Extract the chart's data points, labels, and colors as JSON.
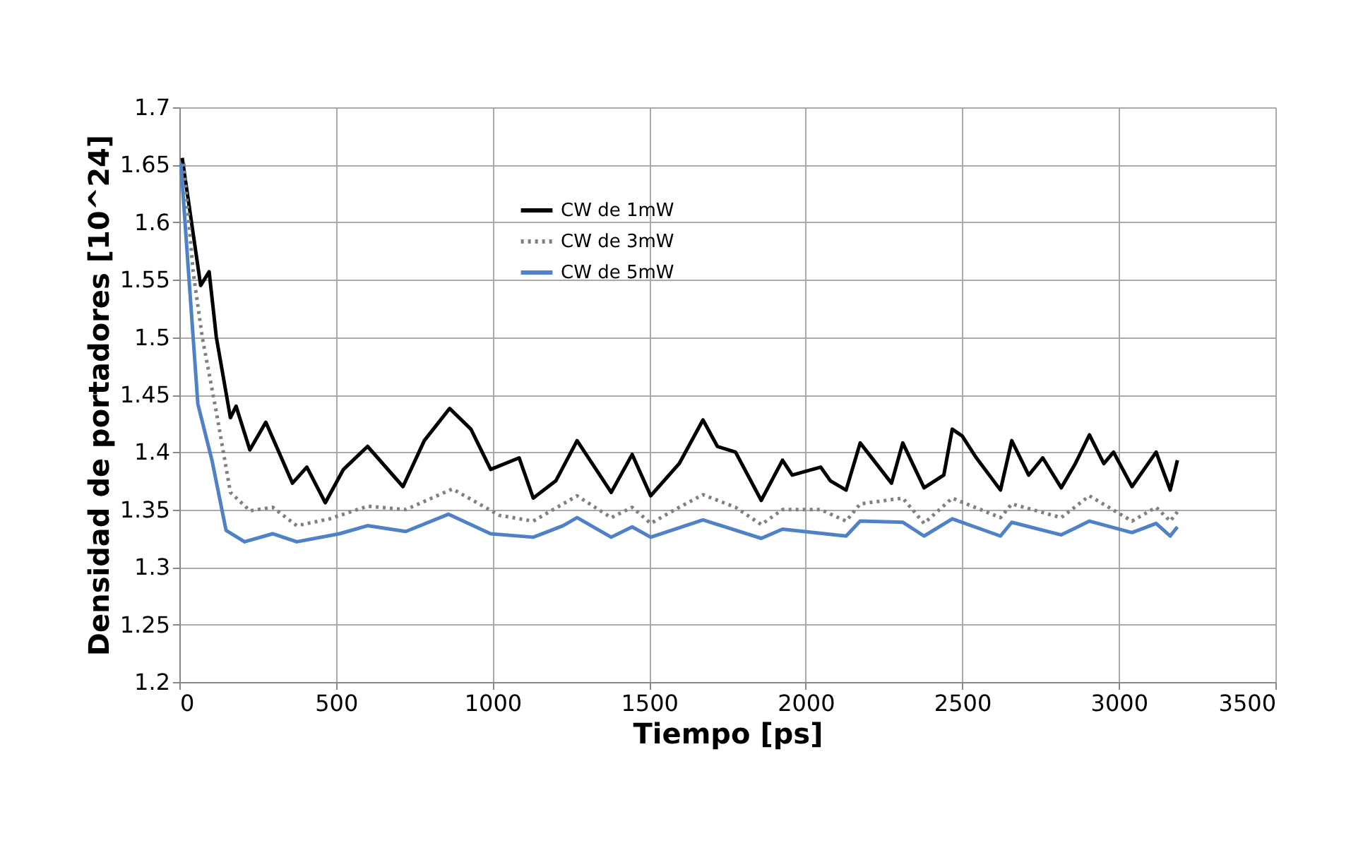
{
  "chart_data": {
    "type": "line",
    "xlabel": "Tiempo [ps]",
    "ylabel": "Densidad de portadores [10^24]",
    "xlim": [
      0,
      3500
    ],
    "xticks": [
      0,
      500,
      1000,
      1500,
      2000,
      2500,
      3000,
      3500
    ],
    "ylim": [
      1.2,
      1.7
    ],
    "yticks": [
      1.2,
      1.25,
      1.3,
      1.35,
      1.4,
      1.45,
      1.5,
      1.55,
      1.6,
      1.65,
      1.7
    ],
    "grid": true,
    "legend": "top left",
    "series": [
      {
        "name": "CW de 1mW",
        "color": "#000000",
        "line_style": "solid",
        "x": [
          9,
          68,
          95,
          118,
          163,
          181,
          225,
          276,
          361,
          407,
          466,
          524,
          601,
          714,
          782,
          863,
          931,
          994,
          1085,
          1130,
          1202,
          1270,
          1379,
          1446,
          1505,
          1596,
          1672,
          1718,
          1776,
          1858,
          1926,
          1957,
          2048,
          2079,
          2129,
          2174,
          2274,
          2310,
          2378,
          2441,
          2468,
          2500,
          2545,
          2622,
          2658,
          2712,
          2757,
          2816,
          2861,
          2906,
          2952,
          2983,
          3042,
          3119,
          3164,
          3187
        ],
        "values": [
          1.656,
          1.545,
          1.557,
          1.5,
          1.43,
          1.44,
          1.402,
          1.426,
          1.373,
          1.387,
          1.356,
          1.385,
          1.405,
          1.37,
          1.41,
          1.438,
          1.42,
          1.385,
          1.395,
          1.36,
          1.375,
          1.41,
          1.365,
          1.398,
          1.362,
          1.39,
          1.428,
          1.405,
          1.4,
          1.358,
          1.393,
          1.38,
          1.387,
          1.375,
          1.367,
          1.408,
          1.373,
          1.408,
          1.369,
          1.38,
          1.42,
          1.414,
          1.395,
          1.367,
          1.41,
          1.38,
          1.395,
          1.369,
          1.39,
          1.415,
          1.39,
          1.4,
          1.37,
          1.4,
          1.367,
          1.393
        ]
      },
      {
        "name": "CW de 3mW",
        "color": "#808080",
        "line_style": "dotted",
        "x": [
          14,
          44,
          73,
          118,
          163,
          225,
          298,
          375,
          480,
          601,
          723,
          872,
          1022,
          1130,
          1270,
          1379,
          1446,
          1505,
          1596,
          1672,
          1776,
          1858,
          1926,
          2048,
          2129,
          2174,
          2310,
          2378,
          2468,
          2622,
          2658,
          2816,
          2906,
          3042,
          3119,
          3164,
          3187
        ],
        "values": [
          1.651,
          1.557,
          1.5,
          1.435,
          1.365,
          1.349,
          1.352,
          1.336,
          1.342,
          1.353,
          1.35,
          1.368,
          1.345,
          1.34,
          1.362,
          1.343,
          1.352,
          1.338,
          1.352,
          1.363,
          1.352,
          1.337,
          1.35,
          1.35,
          1.34,
          1.355,
          1.36,
          1.338,
          1.36,
          1.343,
          1.355,
          1.343,
          1.362,
          1.34,
          1.352,
          1.34,
          1.348
        ]
      },
      {
        "name": "CW de 5mW",
        "color": "#4f81c7",
        "line_style": "solid",
        "x": [
          5,
          27,
          59,
          104,
          149,
          208,
          298,
          375,
          511,
          601,
          723,
          859,
          994,
          1130,
          1225,
          1270,
          1379,
          1446,
          1505,
          1672,
          1858,
          1926,
          2129,
          2174,
          2310,
          2378,
          2468,
          2622,
          2658,
          2816,
          2906,
          3042,
          3119,
          3164,
          3187
        ],
        "values": [
          1.651,
          1.565,
          1.442,
          1.393,
          1.332,
          1.322,
          1.329,
          1.322,
          1.329,
          1.336,
          1.331,
          1.346,
          1.329,
          1.326,
          1.336,
          1.343,
          1.326,
          1.335,
          1.326,
          1.341,
          1.325,
          1.333,
          1.327,
          1.34,
          1.339,
          1.327,
          1.342,
          1.327,
          1.339,
          1.328,
          1.34,
          1.33,
          1.338,
          1.327,
          1.335
        ]
      }
    ]
  }
}
